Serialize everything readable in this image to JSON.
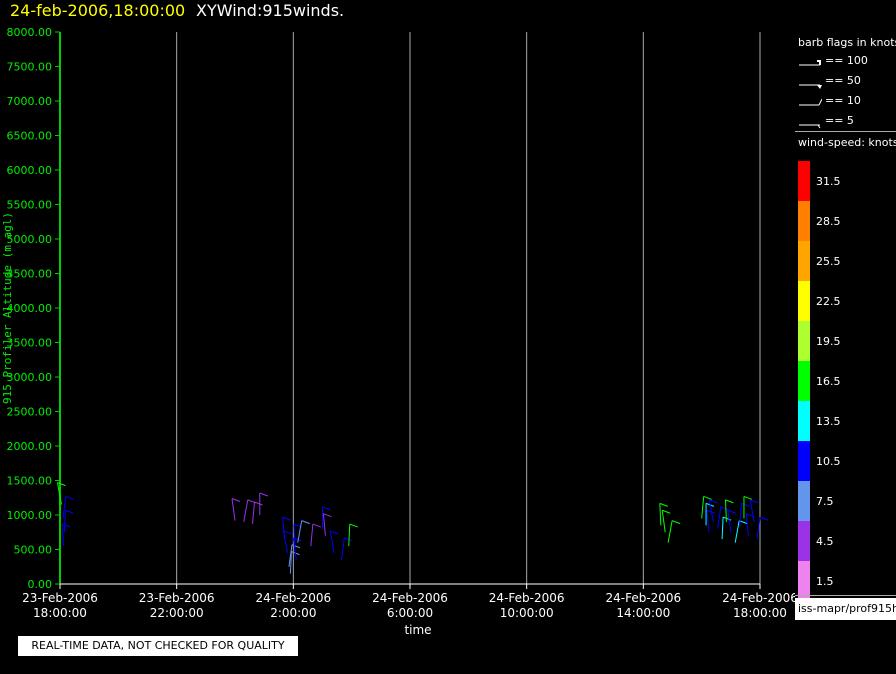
{
  "header": {
    "datetime": "24-feb-2006,18:00:00",
    "product": "XYWind:915winds."
  },
  "sidebar": {
    "flags_title": "barb flags in knots",
    "flags": [
      {
        "label": "== 100"
      },
      {
        "label": "== 50"
      },
      {
        "label": "== 10"
      },
      {
        "label": "== 5"
      }
    ],
    "colorbar_title": "wind-speed: knots",
    "colorbar": [
      {
        "label": "31.5",
        "color": "#ff0000"
      },
      {
        "label": "28.5",
        "color": "#ff7f00"
      },
      {
        "label": "25.5",
        "color": "#ffa500"
      },
      {
        "label": "22.5",
        "color": "#ffff00"
      },
      {
        "label": "19.5",
        "color": "#adff2f"
      },
      {
        "label": "16.5",
        "color": "#00ff00"
      },
      {
        "label": "13.5",
        "color": "#00ffff"
      },
      {
        "label": "10.5",
        "color": "#0000ff"
      },
      {
        "label": "7.5",
        "color": "#6495ed"
      },
      {
        "label": "4.5",
        "color": "#9a32e6"
      },
      {
        "label": "1.5",
        "color": "#ee82ee"
      }
    ],
    "source_path": "iss-mapr/prof915h"
  },
  "notice": "REAL-TIME DATA, NOT CHECKED FOR QUALITY",
  "chart_data": {
    "type": "scatter",
    "title": "",
    "xlabel": "time",
    "ylabel": "915 Profiler Altitude (m agl)",
    "xlim_hours": [
      0,
      24
    ],
    "ylim": [
      0,
      8000
    ],
    "grid": "vertical",
    "y_ticks": [
      "0.00",
      "500.00",
      "1000.00",
      "1500.00",
      "2000.00",
      "2500.00",
      "3000.00",
      "3500.00",
      "4000.00",
      "4500.00",
      "5000.00",
      "5500.00",
      "6000.00",
      "6500.00",
      "7000.00",
      "7500.00",
      "8000.00"
    ],
    "x_ticks": [
      {
        "date": "23-Feb-2006",
        "time": "18:00:00"
      },
      {
        "date": "23-Feb-2006",
        "time": "22:00:00"
      },
      {
        "date": "24-Feb-2006",
        "time": "2:00:00"
      },
      {
        "date": "24-Feb-2006",
        "time": "6:00:00"
      },
      {
        "date": "24-Feb-2006",
        "time": "10:00:00"
      },
      {
        "date": "24-Feb-2006",
        "time": "14:00:00"
      },
      {
        "date": "24-Feb-2006",
        "time": "18:00:00"
      }
    ],
    "series": [
      {
        "name": "wind barbs",
        "points": [
          {
            "t": 0.05,
            "alt": 1150,
            "spd": 16.5
          },
          {
            "t": 0.1,
            "alt": 950,
            "spd": 10.5
          },
          {
            "t": 0.15,
            "alt": 750,
            "spd": 10.5
          },
          {
            "t": 0.12,
            "alt": 550,
            "spd": 10.5
          },
          {
            "t": 6.0,
            "alt": 920,
            "spd": 4.5
          },
          {
            "t": 6.3,
            "alt": 900,
            "spd": 4.5
          },
          {
            "t": 6.6,
            "alt": 870,
            "spd": 4.5
          },
          {
            "t": 6.85,
            "alt": 1000,
            "spd": 4.5
          },
          {
            "t": 7.7,
            "alt": 650,
            "spd": 10.5
          },
          {
            "t": 7.8,
            "alt": 450,
            "spd": 10.5
          },
          {
            "t": 7.85,
            "alt": 250,
            "spd": 7.5
          },
          {
            "t": 7.9,
            "alt": 150,
            "spd": 7.5
          },
          {
            "t": 8.05,
            "alt": 550,
            "spd": 10.5
          },
          {
            "t": 8.1,
            "alt": 350,
            "spd": 10.5
          },
          {
            "t": 8.15,
            "alt": 600,
            "spd": 7.5
          },
          {
            "t": 8.6,
            "alt": 550,
            "spd": 4.5
          },
          {
            "t": 9.0,
            "alt": 800,
            "spd": 10.5
          },
          {
            "t": 9.1,
            "alt": 700,
            "spd": 4.5
          },
          {
            "t": 9.4,
            "alt": 450,
            "spd": 10.5
          },
          {
            "t": 9.65,
            "alt": 350,
            "spd": 10.5
          },
          {
            "t": 9.9,
            "alt": 550,
            "spd": 16.5
          },
          {
            "t": 20.6,
            "alt": 850,
            "spd": 16.5
          },
          {
            "t": 20.75,
            "alt": 750,
            "spd": 16.5
          },
          {
            "t": 20.85,
            "alt": 600,
            "spd": 16.5
          },
          {
            "t": 22.0,
            "alt": 950,
            "spd": 16.5
          },
          {
            "t": 22.15,
            "alt": 850,
            "spd": 13.5
          },
          {
            "t": 22.25,
            "alt": 750,
            "spd": 10.5
          },
          {
            "t": 22.4,
            "alt": 900,
            "spd": 10.5
          },
          {
            "t": 22.55,
            "alt": 800,
            "spd": 10.5
          },
          {
            "t": 22.7,
            "alt": 650,
            "spd": 13.5
          },
          {
            "t": 22.85,
            "alt": 900,
            "spd": 16.5
          },
          {
            "t": 23.0,
            "alt": 750,
            "spd": 10.5
          },
          {
            "t": 23.15,
            "alt": 600,
            "spd": 13.5
          },
          {
            "t": 23.3,
            "alt": 850,
            "spd": 10.5
          },
          {
            "t": 23.45,
            "alt": 950,
            "spd": 16.5
          },
          {
            "t": 23.6,
            "alt": 700,
            "spd": 10.5
          },
          {
            "t": 23.8,
            "alt": 900,
            "spd": 10.5
          },
          {
            "t": 23.9,
            "alt": 650,
            "spd": 10.5
          }
        ]
      }
    ]
  }
}
